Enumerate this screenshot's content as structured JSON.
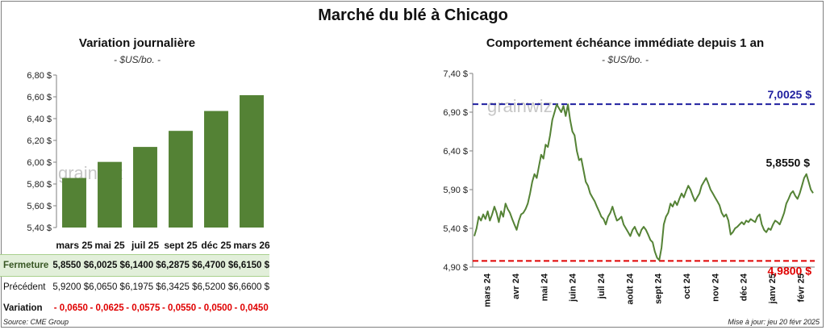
{
  "title": "Marché du blé à Chicago",
  "left": {
    "subtitle": "Variation journalière",
    "unit": "- $US/bo. -",
    "watermark": "grainwiz"
  },
  "right": {
    "subtitle": "Comportement échéance immédiate depuis 1 an",
    "unit": "- $US/bo. -",
    "watermark": "grainwiz"
  },
  "table": {
    "rows": [
      {
        "label": "Fermeture",
        "values": [
          "5,8550 $",
          "6,0025 $",
          "6,1400 $",
          "6,2875 $",
          "6,4700 $",
          "6,6150 $"
        ]
      },
      {
        "label": "Précédent",
        "values": [
          "5,9200 $",
          "6,0650 $",
          "6,1975 $",
          "6,3425 $",
          "6,5200 $",
          "6,6600 $"
        ]
      },
      {
        "label": "Variation",
        "values": [
          "- 0,0650",
          "- 0,0625",
          "- 0,0575",
          "- 0,0550",
          "- 0,0500",
          "- 0,0450"
        ]
      }
    ]
  },
  "footer": {
    "source": "Source: CME Group",
    "updated": "Mise à jour: jeu 20 févr 2025"
  },
  "chart_data": [
    {
      "type": "bar",
      "title": "Variation journalière",
      "ylabel": "$US/bo.",
      "categories": [
        "mars 25",
        "mai 25",
        "juil 25",
        "sept 25",
        "déc 25",
        "mars 26"
      ],
      "values": [
        5.855,
        6.0025,
        6.14,
        6.2875,
        6.47,
        6.615
      ],
      "ylim": [
        5.4,
        6.8
      ],
      "yticks": [
        "6,80 $",
        "6,60 $",
        "6,40 $",
        "6,20 $",
        "6,00 $",
        "5,80 $",
        "5,60 $",
        "5,40 $"
      ],
      "color": "#548235",
      "grid": false
    },
    {
      "type": "line",
      "title": "Comportement échéance immédiate depuis 1 an",
      "ylabel": "$US/bo.",
      "ylim": [
        4.9,
        7.4
      ],
      "yticks": [
        "7,40 $",
        "6,90 $",
        "6,40 $",
        "5,90 $",
        "5,40 $",
        "4,90 $"
      ],
      "xticks": [
        "mars 24",
        "avr 24",
        "mai 24",
        "juin 24",
        "juil 24",
        "août 24",
        "sept 24",
        "oct 24",
        "nov 24",
        "déc 24",
        "janv 25",
        "févr 25"
      ],
      "x_start": "2024-02-20",
      "x_end": "2025-02-20",
      "series": [
        {
          "color": "#548235",
          "values": [
            5.3,
            5.4,
            5.55,
            5.5,
            5.58,
            5.52,
            5.62,
            5.5,
            5.58,
            5.68,
            5.6,
            5.48,
            5.62,
            5.55,
            5.72,
            5.65,
            5.6,
            5.52,
            5.45,
            5.38,
            5.5,
            5.58,
            5.6,
            5.65,
            5.72,
            5.85,
            6.0,
            6.1,
            6.05,
            6.2,
            6.35,
            6.3,
            6.48,
            6.45,
            6.6,
            6.8,
            6.9,
            7.0,
            6.95,
            6.9,
            6.98,
            6.85,
            7.0,
            6.8,
            6.65,
            6.6,
            6.4,
            6.28,
            6.3,
            6.15,
            6.0,
            5.95,
            5.85,
            5.8,
            5.75,
            5.68,
            5.62,
            5.55,
            5.52,
            5.45,
            5.55,
            5.6,
            5.68,
            5.58,
            5.5,
            5.52,
            5.55,
            5.45,
            5.4,
            5.35,
            5.3,
            5.38,
            5.42,
            5.35,
            5.3,
            5.38,
            5.42,
            5.38,
            5.32,
            5.25,
            5.22,
            5.1,
            5.02,
            4.99,
            5.15,
            5.45,
            5.55,
            5.6,
            5.72,
            5.68,
            5.75,
            5.7,
            5.78,
            5.85,
            5.8,
            5.88,
            5.95,
            5.9,
            5.82,
            5.75,
            5.8,
            5.85,
            5.95,
            6.0,
            6.05,
            5.98,
            5.9,
            5.85,
            5.8,
            5.75,
            5.7,
            5.6,
            5.55,
            5.58,
            5.5,
            5.32,
            5.35,
            5.4,
            5.42,
            5.45,
            5.48,
            5.45,
            5.5,
            5.48,
            5.52,
            5.5,
            5.48,
            5.55,
            5.58,
            5.45,
            5.38,
            5.35,
            5.4,
            5.38,
            5.45,
            5.5,
            5.48,
            5.45,
            5.52,
            5.6,
            5.72,
            5.78,
            5.85,
            5.88,
            5.82,
            5.78,
            5.85,
            5.95,
            6.05,
            6.1,
            6.0,
            5.9,
            5.855
          ]
        }
      ],
      "reference_lines": [
        {
          "value": 7.0025,
          "label": "7,0025 $",
          "color": "#1f1f9f",
          "style": "dashed"
        },
        {
          "value": 4.98,
          "label": "4,9800 $",
          "color": "#e00000",
          "style": "dashed"
        }
      ],
      "last_label": "5,8550 $",
      "grid": false
    }
  ]
}
